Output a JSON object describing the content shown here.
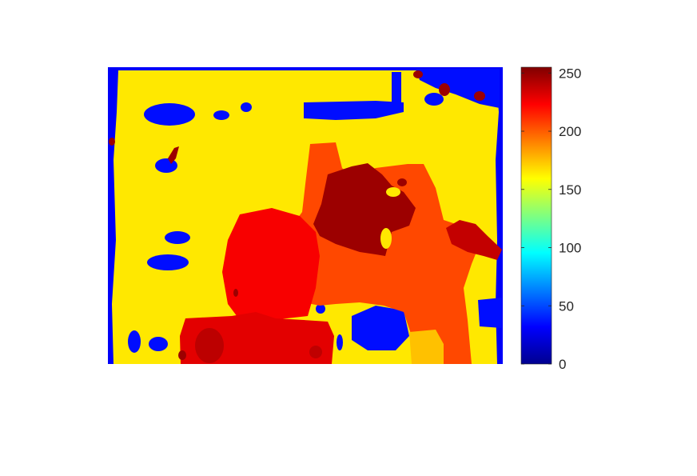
{
  "chart_data": {
    "type": "heatmap",
    "title": "",
    "xlabel": "",
    "ylabel": "",
    "colormap": "jet",
    "clim": [
      0,
      255
    ],
    "colorbar": {
      "ticks": [
        0,
        50,
        100,
        150,
        200,
        250
      ],
      "tick_labels": [
        "0",
        "50",
        "100",
        "150",
        "200",
        "250"
      ]
    },
    "axes_visible": false,
    "regions": [
      {
        "name": "background",
        "value": 165
      },
      {
        "name": "center-orange-body",
        "value": 205
      },
      {
        "name": "left-red-lobe",
        "value": 225
      },
      {
        "name": "dark-red-top-center",
        "value": 248
      },
      {
        "name": "dark-red-right-patch",
        "value": 238
      },
      {
        "name": "bottom-red-block",
        "value": 230
      },
      {
        "name": "blue-spots",
        "value": 35
      },
      {
        "name": "border-blue",
        "value": 30
      },
      {
        "name": "bottom-yellow-strip",
        "value": 175
      }
    ]
  }
}
